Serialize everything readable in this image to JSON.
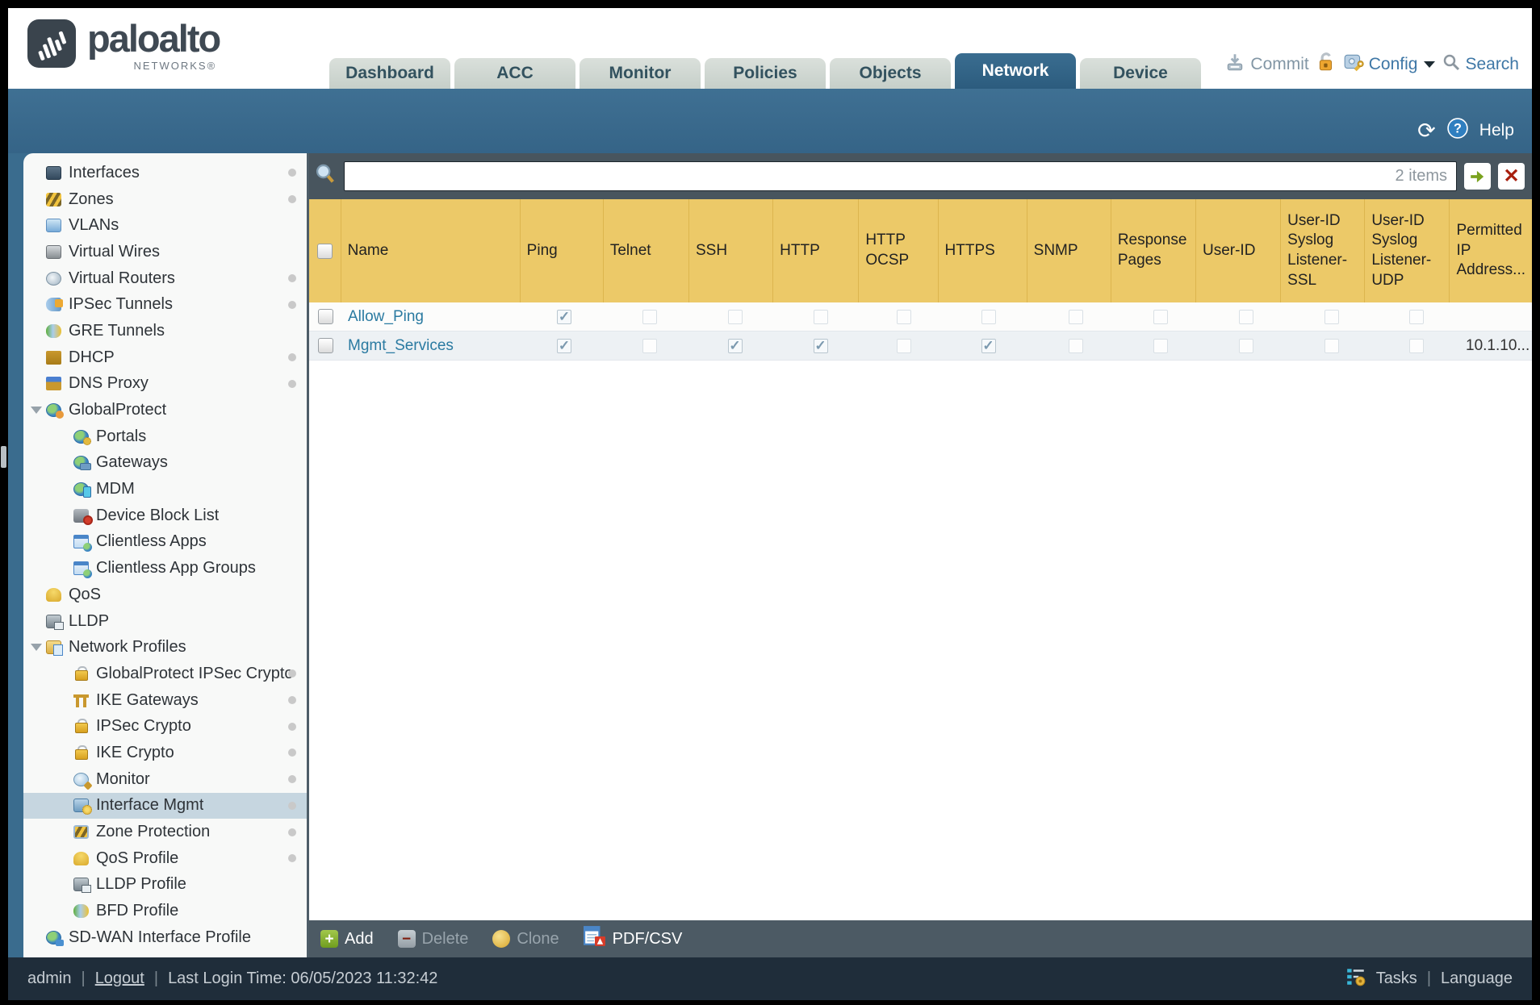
{
  "brand": {
    "name": "paloalto",
    "sub": "NETWORKS®"
  },
  "colors": {
    "header_gold": "#ecc968",
    "active_tab": "#2d5e80",
    "band_blue": "#3a6c8e",
    "link": "#2a7aa1"
  },
  "nav": {
    "tabs": [
      {
        "label": "Dashboard",
        "active": false
      },
      {
        "label": "ACC",
        "active": false
      },
      {
        "label": "Monitor",
        "active": false
      },
      {
        "label": "Policies",
        "active": false
      },
      {
        "label": "Objects",
        "active": false
      },
      {
        "label": "Network",
        "active": true
      },
      {
        "label": "Device",
        "active": false
      }
    ]
  },
  "header_actions": {
    "commit": "Commit",
    "config": "Config",
    "search": "Search"
  },
  "band": {
    "help": "Help"
  },
  "search": {
    "value": "",
    "placeholder": "",
    "count": "2 items"
  },
  "sidebar": {
    "items": [
      {
        "label": "Interfaces",
        "level": 0,
        "icon": "interfaces",
        "dot": true
      },
      {
        "label": "Zones",
        "level": 0,
        "icon": "zones",
        "dot": true
      },
      {
        "label": "VLANs",
        "level": 0,
        "icon": "vlans"
      },
      {
        "label": "Virtual Wires",
        "level": 0,
        "icon": "virtual-wires"
      },
      {
        "label": "Virtual Routers",
        "level": 0,
        "icon": "virtual-routers",
        "dot": true
      },
      {
        "label": "IPSec Tunnels",
        "level": 0,
        "icon": "ipsec-tunnels",
        "dot": true
      },
      {
        "label": "GRE Tunnels",
        "level": 0,
        "icon": "gre-tunnels"
      },
      {
        "label": "DHCP",
        "level": 0,
        "icon": "dhcp",
        "dot": true
      },
      {
        "label": "DNS Proxy",
        "level": 0,
        "icon": "dns-proxy",
        "dot": true
      },
      {
        "label": "GlobalProtect",
        "level": 0,
        "icon": "globalprotect",
        "expander": true
      },
      {
        "label": "Portals",
        "level": 1,
        "icon": "portals"
      },
      {
        "label": "Gateways",
        "level": 1,
        "icon": "gateways"
      },
      {
        "label": "MDM",
        "level": 1,
        "icon": "mdm"
      },
      {
        "label": "Device Block List",
        "level": 1,
        "icon": "device-block-list"
      },
      {
        "label": "Clientless Apps",
        "level": 1,
        "icon": "clientless-apps"
      },
      {
        "label": "Clientless App Groups",
        "level": 1,
        "icon": "clientless-app-groups"
      },
      {
        "label": "QoS",
        "level": 0,
        "icon": "qos"
      },
      {
        "label": "LLDP",
        "level": 0,
        "icon": "lldp"
      },
      {
        "label": "Network Profiles",
        "level": 0,
        "icon": "network-profiles",
        "expander": true
      },
      {
        "label": "GlobalProtect IPSec Crypto",
        "level": 1,
        "icon": "lock",
        "dot": true
      },
      {
        "label": "IKE Gateways",
        "level": 1,
        "icon": "ike-gateways",
        "dot": true
      },
      {
        "label": "IPSec Crypto",
        "level": 1,
        "icon": "lock",
        "dot": true
      },
      {
        "label": "IKE Crypto",
        "level": 1,
        "icon": "lock",
        "dot": true
      },
      {
        "label": "Monitor",
        "level": 1,
        "icon": "monitor",
        "dot": true
      },
      {
        "label": "Interface Mgmt",
        "level": 1,
        "icon": "interface-mgmt",
        "selected": true,
        "dot": true
      },
      {
        "label": "Zone Protection",
        "level": 1,
        "icon": "zone-protection",
        "dot": true
      },
      {
        "label": "QoS Profile",
        "level": 1,
        "icon": "qos-profile",
        "dot": true
      },
      {
        "label": "LLDP Profile",
        "level": 1,
        "icon": "lldp-profile"
      },
      {
        "label": "BFD Profile",
        "level": 1,
        "icon": "bfd-profile"
      },
      {
        "label": "SD-WAN Interface Profile",
        "level": 0,
        "icon": "sd-wan"
      }
    ]
  },
  "table": {
    "columns": [
      {
        "key": "sel",
        "label": "",
        "type": "selector"
      },
      {
        "key": "name",
        "label": "Name",
        "type": "name"
      },
      {
        "key": "ping",
        "label": "Ping",
        "type": "check"
      },
      {
        "key": "telnet",
        "label": "Telnet",
        "type": "check"
      },
      {
        "key": "ssh",
        "label": "SSH",
        "type": "check"
      },
      {
        "key": "http",
        "label": "HTTP",
        "type": "check"
      },
      {
        "key": "http_ocsp",
        "label": "HTTP OCSP",
        "type": "check"
      },
      {
        "key": "https",
        "label": "HTTPS",
        "type": "check"
      },
      {
        "key": "snmp",
        "label": "SNMP",
        "type": "check"
      },
      {
        "key": "response_pages",
        "label": "Response Pages",
        "type": "check"
      },
      {
        "key": "user_id",
        "label": "User-ID",
        "type": "check"
      },
      {
        "key": "uid_ssl",
        "label": "User-ID Syslog Listener-SSL",
        "type": "check"
      },
      {
        "key": "uid_udp",
        "label": "User-ID Syslog Listener-UDP",
        "type": "check"
      },
      {
        "key": "permitted",
        "label": "Permitted IP Address...",
        "type": "text"
      }
    ],
    "rows": [
      {
        "name": "Allow_Ping",
        "checks": {
          "ping": true
        },
        "permitted": ""
      },
      {
        "name": "Mgmt_Services",
        "checks": {
          "ping": true,
          "ssh": true,
          "http": true,
          "https": true
        },
        "permitted": "10.1.10..."
      }
    ]
  },
  "actions": {
    "add": "Add",
    "delete": "Delete",
    "clone": "Clone",
    "pdfcsv": "PDF/CSV"
  },
  "footer": {
    "user": "admin",
    "logout": "Logout",
    "last_login": "Last Login Time: 06/05/2023 11:32:42",
    "tasks": "Tasks",
    "language": "Language"
  }
}
